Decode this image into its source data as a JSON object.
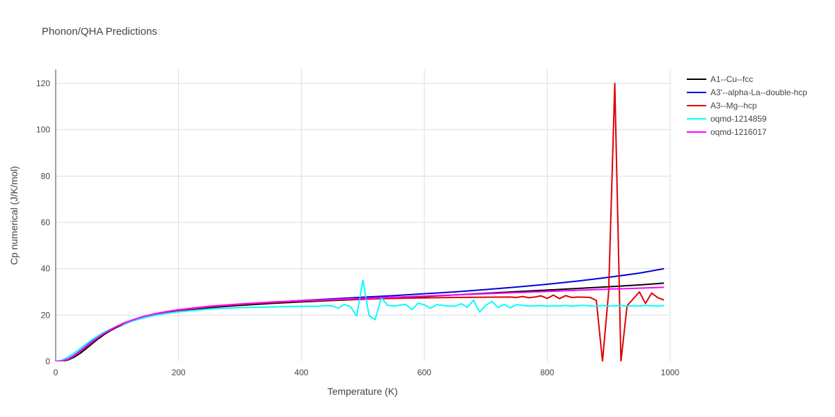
{
  "chart_data": {
    "type": "line",
    "title": "Phonon/QHA Predictions",
    "xlabel": "Temperature (K)",
    "ylabel": "Cp numerical (J/K/mol)",
    "xlim": [
      0,
      1000
    ],
    "ylim": [
      0,
      126
    ],
    "xticks": [
      0,
      200,
      400,
      600,
      800,
      1000
    ],
    "yticks": [
      0,
      20,
      40,
      60,
      80,
      100,
      120
    ],
    "grid": true,
    "legend_position": "top-right",
    "series": [
      {
        "name": "A1--Cu--fcc",
        "color": "#000000",
        "x": [
          0,
          10,
          20,
          30,
          40,
          50,
          60,
          70,
          80,
          90,
          100,
          110,
          120,
          140,
          160,
          180,
          200,
          250,
          300,
          350,
          400,
          450,
          500,
          550,
          600,
          650,
          700,
          750,
          800,
          850,
          900,
          950,
          990
        ],
        "y": [
          0,
          0.1,
          0.6,
          1.8,
          3.5,
          5.6,
          7.8,
          9.9,
          11.8,
          13.4,
          14.8,
          16.0,
          17.0,
          18.8,
          20.0,
          21.0,
          21.8,
          23.2,
          24.2,
          25.0,
          25.7,
          26.3,
          26.8,
          27.4,
          28.0,
          28.7,
          29.4,
          30.1,
          30.8,
          31.5,
          32.2,
          33.0,
          33.8
        ]
      },
      {
        "name": "A3'--alpha-La--double-hcp",
        "color": "#0000dd",
        "x": [
          0,
          10,
          20,
          30,
          40,
          50,
          60,
          70,
          80,
          90,
          100,
          110,
          120,
          140,
          160,
          180,
          200,
          250,
          300,
          350,
          400,
          450,
          500,
          550,
          600,
          650,
          700,
          750,
          800,
          850,
          900,
          950,
          990
        ],
        "y": [
          0,
          0.2,
          1.0,
          2.6,
          4.6,
          6.7,
          8.8,
          10.7,
          12.4,
          13.8,
          15.1,
          16.3,
          17.3,
          19.0,
          20.2,
          21.2,
          22.0,
          23.5,
          24.6,
          25.5,
          26.3,
          27.0,
          27.7,
          28.4,
          29.2,
          30.0,
          31.0,
          32.1,
          33.3,
          34.7,
          36.3,
          38.1,
          40.0
        ]
      },
      {
        "name": "A3--Mg--hcp",
        "color": "#dd0000",
        "x": [
          0,
          10,
          20,
          30,
          40,
          50,
          60,
          70,
          80,
          90,
          100,
          110,
          120,
          140,
          160,
          180,
          200,
          250,
          300,
          350,
          400,
          450,
          500,
          550,
          600,
          650,
          700,
          740,
          750,
          760,
          770,
          780,
          790,
          800,
          810,
          820,
          830,
          840,
          850,
          860,
          870,
          880,
          890,
          895,
          900,
          910,
          920,
          930,
          940,
          950,
          960,
          970,
          980,
          990
        ],
        "y": [
          0,
          0.2,
          0.9,
          2.3,
          4.2,
          6.3,
          8.4,
          10.4,
          12.2,
          13.7,
          15.1,
          16.3,
          17.3,
          19.0,
          20.3,
          21.3,
          22.1,
          23.6,
          24.6,
          25.4,
          26.0,
          26.5,
          26.9,
          27.2,
          27.4,
          27.6,
          27.7,
          27.8,
          27.6,
          28.0,
          27.5,
          27.8,
          28.3,
          27.2,
          28.6,
          27.1,
          28.4,
          27.6,
          27.8,
          27.7,
          27.6,
          26.3,
          0,
          15,
          30,
          120,
          0,
          24,
          27,
          30,
          25,
          29.5,
          27.5,
          26.5
        ]
      },
      {
        "name": "oqmd-1214859",
        "color": "#00ffff",
        "x": [
          0,
          10,
          20,
          30,
          40,
          50,
          60,
          70,
          80,
          90,
          100,
          110,
          120,
          140,
          160,
          180,
          200,
          250,
          300,
          350,
          400,
          430,
          440,
          450,
          460,
          470,
          480,
          490,
          500,
          510,
          520,
          530,
          540,
          550,
          560,
          570,
          580,
          590,
          600,
          610,
          620,
          630,
          640,
          650,
          660,
          670,
          680,
          690,
          700,
          710,
          720,
          730,
          740,
          750,
          760,
          770,
          780,
          790,
          800,
          810,
          820,
          830,
          840,
          850,
          860,
          870,
          880,
          890,
          900,
          910,
          920,
          930,
          940,
          950,
          960,
          970,
          980,
          990
        ],
        "y": [
          0,
          0.5,
          1.8,
          3.6,
          5.6,
          7.6,
          9.5,
          11.2,
          12.7,
          14.0,
          15.2,
          16.2,
          17.0,
          18.6,
          19.8,
          20.7,
          21.4,
          22.6,
          23.2,
          23.5,
          23.8,
          23.8,
          24.1,
          23.9,
          23.0,
          24.6,
          23.6,
          19.5,
          35.0,
          19.8,
          18.0,
          27.5,
          24.3,
          23.8,
          24.3,
          24.6,
          22.3,
          25.2,
          24.4,
          22.9,
          24.5,
          24.2,
          23.9,
          23.8,
          24.9,
          23.3,
          26.4,
          21.3,
          24.2,
          25.9,
          23.3,
          24.6,
          23.1,
          24.5,
          24.2,
          23.9,
          24.0,
          24.1,
          23.8,
          24.0,
          23.9,
          24.2,
          23.8,
          24.1,
          24.2,
          23.9,
          23.8,
          24.1,
          23.9,
          24.0,
          24.1,
          23.8,
          24.0,
          23.9,
          24.2,
          24.0,
          23.8,
          24.2
        ]
      },
      {
        "name": "oqmd-1216017",
        "color": "#ff00ff",
        "x": [
          0,
          10,
          20,
          30,
          40,
          50,
          60,
          70,
          80,
          90,
          100,
          110,
          120,
          140,
          160,
          180,
          200,
          250,
          300,
          350,
          400,
          450,
          500,
          550,
          600,
          650,
          700,
          750,
          800,
          850,
          900,
          950,
          990
        ],
        "y": [
          0,
          0.2,
          0.9,
          2.4,
          4.4,
          6.5,
          8.6,
          10.6,
          12.3,
          13.8,
          15.2,
          16.5,
          17.4,
          19.2,
          20.5,
          21.5,
          22.3,
          23.8,
          24.8,
          25.6,
          26.2,
          26.7,
          27.2,
          27.7,
          28.2,
          28.7,
          29.2,
          29.7,
          30.2,
          30.7,
          31.2,
          31.6,
          32.0
        ]
      }
    ]
  }
}
